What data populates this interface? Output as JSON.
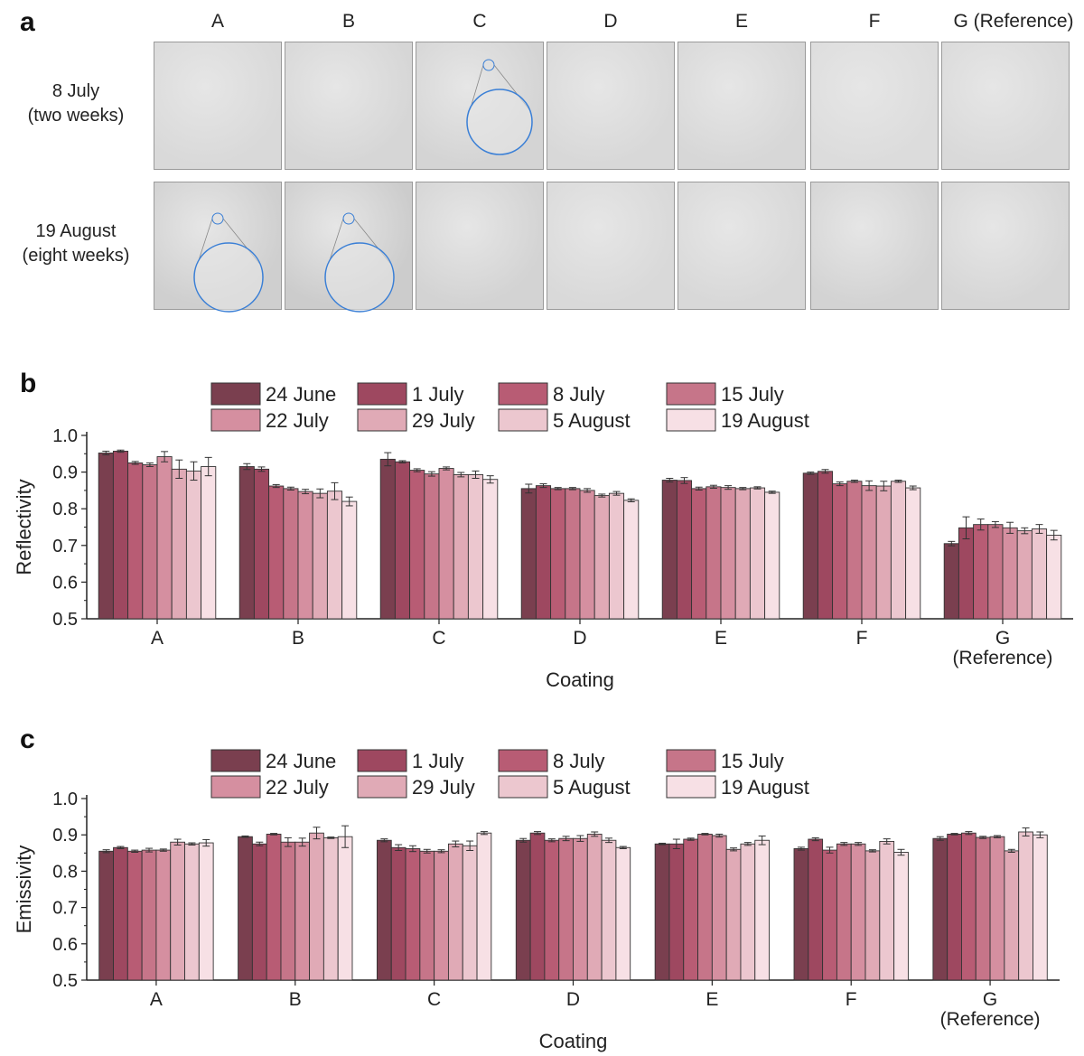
{
  "panel_a": {
    "letter": "a",
    "columns": [
      "A",
      "B",
      "C",
      "D",
      "E",
      "F",
      "G (Reference)"
    ],
    "rows": [
      {
        "label_line1": "8 July",
        "label_line2": "(two weeks)"
      },
      {
        "label_line1": "19 August",
        "label_line2": "(eight weeks)"
      }
    ],
    "tile_colors": [
      [
        "#d9d9d9",
        "#d6d6d6",
        "#d4d4d4",
        "#d8d8d8",
        "#d7d7d7",
        "#dcdcdc",
        "#d9d9d9"
      ],
      [
        "#cfcfcf",
        "#cccccc",
        "#d3d3d3",
        "#d9d9d9",
        "#d8d8d8",
        "#d3d3d3",
        "#d6d6d6"
      ]
    ],
    "magnified_tiles": [
      [
        0,
        2
      ],
      [
        1,
        0
      ],
      [
        1,
        1
      ]
    ],
    "highlight_color": "#3a7fd6"
  },
  "legend_entries": [
    "24 June",
    "1 July",
    "8 July",
    "15 July",
    "22 July",
    "29 July",
    "5 August",
    "19 August"
  ],
  "series_colors": [
    "#7a3f4f",
    "#9e4860",
    "#b85c74",
    "#c67589",
    "#d58fa0",
    "#e0aab6",
    "#ecc7cf",
    "#f7e0e5"
  ],
  "chart_data": [
    {
      "type": "bar",
      "panel_letter": "b",
      "categories": [
        "A",
        "B",
        "C",
        "D",
        "E",
        "F",
        "G"
      ],
      "category_sublabels": [
        "",
        "",
        "",
        "",
        "",
        "",
        "(Reference)"
      ],
      "xlabel": "Coating",
      "ylabel": "Reflectivity",
      "ylim": [
        0.5,
        1.0
      ],
      "yticks": [
        "0.5",
        "0.6",
        "0.7",
        "0.8",
        "0.9",
        "1.0"
      ],
      "legend_placement": "top",
      "series": [
        {
          "name": "24 June",
          "values": [
            0.952,
            0.915,
            0.935,
            0.855,
            0.878,
            0.897,
            0.705
          ],
          "errors": [
            0.005,
            0.008,
            0.018,
            0.012,
            0.005,
            0.003,
            0.006
          ]
        },
        {
          "name": "1 July",
          "values": [
            0.957,
            0.908,
            0.928,
            0.863,
            0.877,
            0.902,
            0.748
          ],
          "errors": [
            0.003,
            0.006,
            0.003,
            0.005,
            0.008,
            0.005,
            0.03
          ]
        },
        {
          "name": "8 July",
          "values": [
            0.925,
            0.862,
            0.905,
            0.855,
            0.855,
            0.868,
            0.757
          ],
          "errors": [
            0.004,
            0.004,
            0.004,
            0.003,
            0.004,
            0.005,
            0.015
          ]
        },
        {
          "name": "15 July",
          "values": [
            0.92,
            0.855,
            0.895,
            0.855,
            0.86,
            0.875,
            0.757
          ],
          "errors": [
            0.005,
            0.004,
            0.006,
            0.003,
            0.004,
            0.003,
            0.008
          ]
        },
        {
          "name": "22 July",
          "values": [
            0.942,
            0.847,
            0.91,
            0.85,
            0.858,
            0.863,
            0.748
          ],
          "errors": [
            0.014,
            0.006,
            0.004,
            0.005,
            0.005,
            0.013,
            0.015
          ]
        },
        {
          "name": "29 July",
          "values": [
            0.908,
            0.842,
            0.893,
            0.836,
            0.855,
            0.862,
            0.74
          ],
          "errors": [
            0.025,
            0.012,
            0.006,
            0.004,
            0.003,
            0.013,
            0.008
          ]
        },
        {
          "name": "5 August",
          "values": [
            0.903,
            0.848,
            0.893,
            0.842,
            0.857,
            0.875,
            0.745
          ],
          "errors": [
            0.025,
            0.023,
            0.01,
            0.005,
            0.003,
            0.003,
            0.012
          ]
        },
        {
          "name": "19 August",
          "values": [
            0.915,
            0.82,
            0.88,
            0.823,
            0.845,
            0.857,
            0.728
          ],
          "errors": [
            0.025,
            0.012,
            0.01,
            0.004,
            0.003,
            0.005,
            0.013
          ]
        }
      ]
    },
    {
      "type": "bar",
      "panel_letter": "c",
      "categories": [
        "A",
        "B",
        "C",
        "D",
        "E",
        "F",
        "G"
      ],
      "category_sublabels": [
        "",
        "",
        "",
        "",
        "",
        "",
        "(Reference)"
      ],
      "xlabel": "Coating",
      "ylabel": "Emissivity",
      "ylim": [
        0.5,
        1.0
      ],
      "yticks": [
        "0.5",
        "0.6",
        "0.7",
        "0.8",
        "0.9",
        "1.0"
      ],
      "legend_placement": "top",
      "series": [
        {
          "name": "24 June",
          "values": [
            0.855,
            0.895,
            0.885,
            0.885,
            0.875,
            0.862,
            0.89
          ],
          "errors": [
            0.004,
            0.002,
            0.004,
            0.005,
            0.002,
            0.004,
            0.005
          ]
        },
        {
          "name": "1 July",
          "values": [
            0.865,
            0.875,
            0.865,
            0.905,
            0.875,
            0.888,
            0.902
          ],
          "errors": [
            0.003,
            0.005,
            0.008,
            0.004,
            0.013,
            0.004,
            0.002
          ]
        },
        {
          "name": "8 July",
          "values": [
            0.855,
            0.902,
            0.862,
            0.885,
            0.888,
            0.858,
            0.905
          ],
          "errors": [
            0.003,
            0.002,
            0.008,
            0.004,
            0.003,
            0.008,
            0.004
          ]
        },
        {
          "name": "15 July",
          "values": [
            0.858,
            0.88,
            0.855,
            0.89,
            0.902,
            0.875,
            0.893
          ],
          "errors": [
            0.005,
            0.012,
            0.005,
            0.006,
            0.002,
            0.004,
            0.003
          ]
        },
        {
          "name": "22 July",
          "values": [
            0.858,
            0.88,
            0.855,
            0.89,
            0.898,
            0.875,
            0.895
          ],
          "errors": [
            0.003,
            0.011,
            0.004,
            0.008,
            0.004,
            0.004,
            0.003
          ]
        },
        {
          "name": "29 July",
          "values": [
            0.88,
            0.905,
            0.875,
            0.902,
            0.86,
            0.856,
            0.856
          ],
          "errors": [
            0.008,
            0.016,
            0.008,
            0.006,
            0.004,
            0.003,
            0.004
          ]
        },
        {
          "name": "5 August",
          "values": [
            0.875,
            0.892,
            0.87,
            0.885,
            0.875,
            0.882,
            0.908
          ],
          "errors": [
            0.003,
            0.002,
            0.013,
            0.006,
            0.004,
            0.007,
            0.011
          ]
        },
        {
          "name": "19 August",
          "values": [
            0.878,
            0.895,
            0.905,
            0.865,
            0.885,
            0.852,
            0.9
          ],
          "errors": [
            0.009,
            0.03,
            0.004,
            0.003,
            0.012,
            0.008,
            0.008
          ]
        }
      ]
    }
  ]
}
